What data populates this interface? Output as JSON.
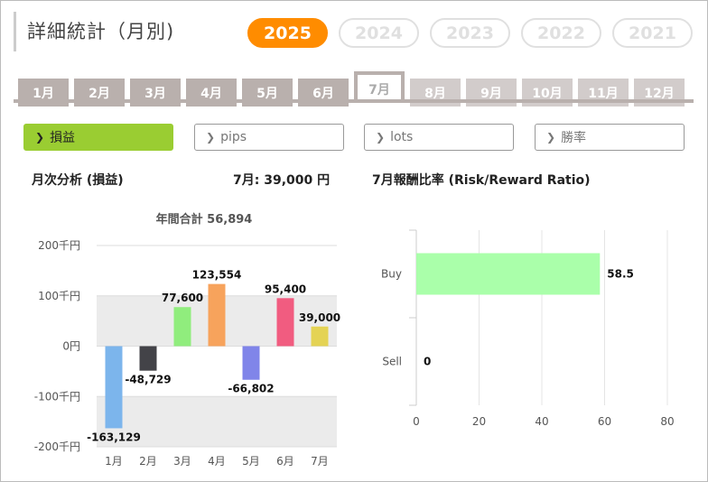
{
  "page": {
    "title": "詳細統計（月別)"
  },
  "years": [
    {
      "label": "2025",
      "active": true
    },
    {
      "label": "2024",
      "active": false
    },
    {
      "label": "2023",
      "active": false
    },
    {
      "label": "2022",
      "active": false
    },
    {
      "label": "2021",
      "active": false
    }
  ],
  "months": [
    {
      "label": "1月",
      "state": "past"
    },
    {
      "label": "2月",
      "state": "past"
    },
    {
      "label": "3月",
      "state": "past"
    },
    {
      "label": "4月",
      "state": "past"
    },
    {
      "label": "5月",
      "state": "past"
    },
    {
      "label": "6月",
      "state": "past"
    },
    {
      "label": "7月",
      "state": "active"
    },
    {
      "label": "8月",
      "state": "future"
    },
    {
      "label": "9月",
      "state": "future"
    },
    {
      "label": "10月",
      "state": "future"
    },
    {
      "label": "11月",
      "state": "future"
    },
    {
      "label": "12月",
      "state": "future"
    }
  ],
  "metrics": [
    {
      "label": "損益",
      "active": true
    },
    {
      "label": "pips",
      "active": false
    },
    {
      "label": "lots",
      "active": false
    },
    {
      "label": "勝率",
      "active": false
    }
  ],
  "left_section": {
    "title": "月次分析 (損益)",
    "month_summary": "7月:  39,000 円"
  },
  "right_section": {
    "title": "7月報酬比率 (Risk/Reward Ratio)"
  },
  "colors": {
    "accent": "#ff8c00",
    "metric_active": "#9acd32",
    "tab": "#b9b0ad"
  },
  "chart_data": [
    {
      "type": "bar",
      "title": "年間合計 56,894",
      "categories": [
        "1月",
        "2月",
        "3月",
        "4月",
        "5月",
        "6月",
        "7月"
      ],
      "values": [
        -163129,
        -48729,
        77600,
        123554,
        -66802,
        95400,
        39000
      ],
      "value_labels": [
        "-163,129",
        "-48,729",
        "77,600",
        "123,554",
        "-66,802",
        "95,400",
        "39,000"
      ],
      "colors": [
        "#7cb5ec",
        "#434348",
        "#90ed7d",
        "#f7a35c",
        "#8085e9",
        "#f15c80",
        "#e4d354"
      ],
      "ylim": [
        -200000,
        200000
      ],
      "yticks": [
        {
          "value": 200000,
          "label": "200千円"
        },
        {
          "value": 100000,
          "label": "100千円"
        },
        {
          "value": 0,
          "label": "0円"
        },
        {
          "value": -100000,
          "label": "-100千円"
        },
        {
          "value": -200000,
          "label": "-200千円"
        }
      ],
      "xlabel": "",
      "ylabel": ""
    },
    {
      "type": "bar",
      "orientation": "horizontal",
      "categories": [
        "Buy",
        "Sell"
      ],
      "values": [
        58.5,
        0
      ],
      "value_labels": [
        "58.5",
        "0"
      ],
      "color": "#aaffaa",
      "xlim": [
        0,
        80
      ],
      "xticks": [
        0,
        20,
        40,
        60,
        80
      ],
      "title": "",
      "xlabel": "",
      "ylabel": ""
    }
  ]
}
